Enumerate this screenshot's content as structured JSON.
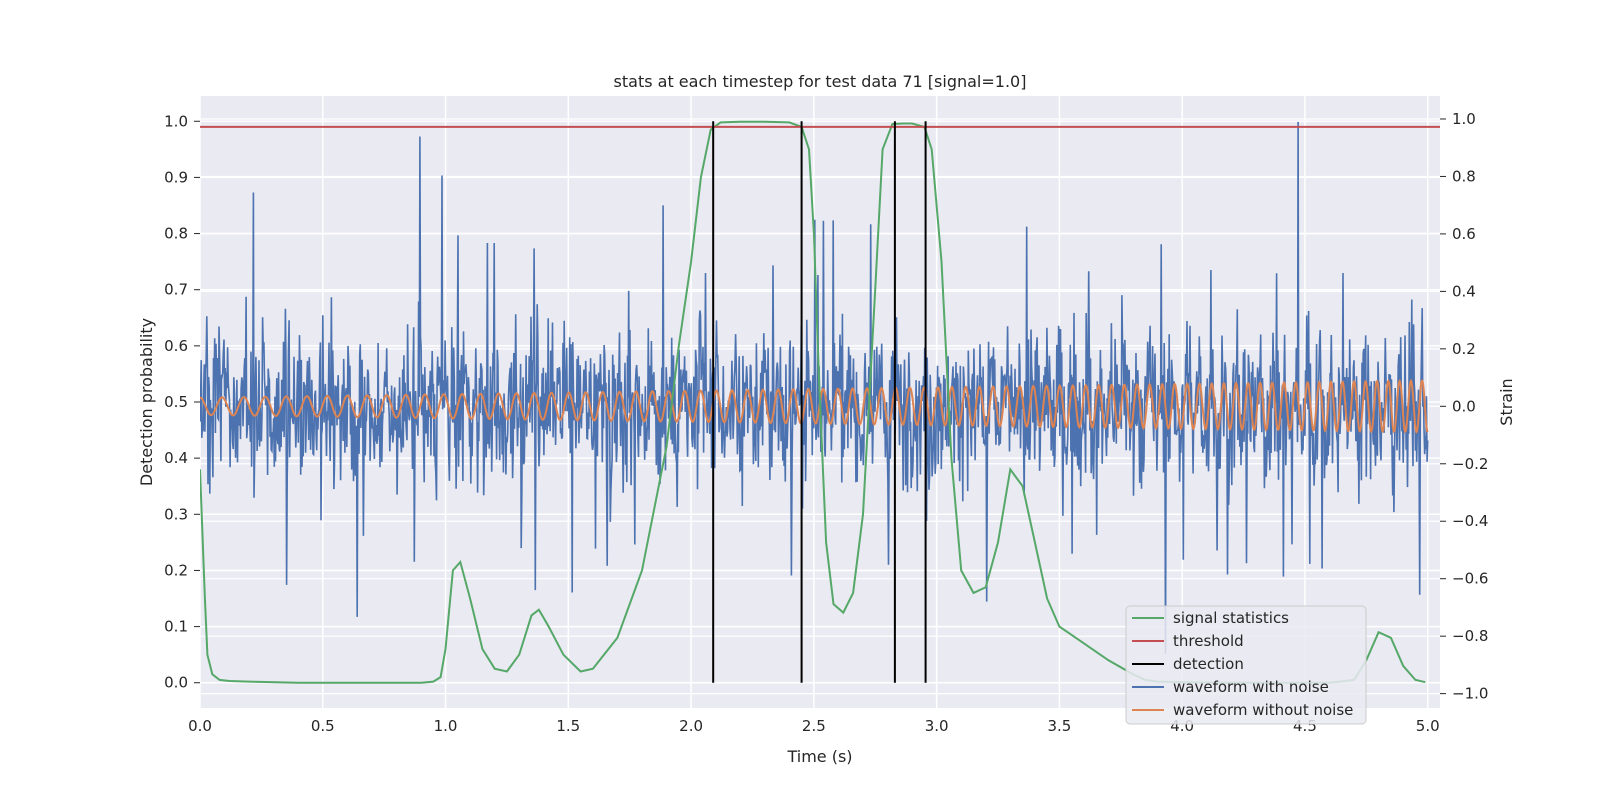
{
  "chart_data": {
    "type": "line",
    "title": "stats at each timestep for test data 71 [signal=1.0]",
    "xlabel": "Time (s)",
    "ylabel_left": "Detection probability",
    "ylabel_right": "Strain",
    "xlim": [
      0.0,
      5.05
    ],
    "ylim_left": [
      -0.045,
      1.045
    ],
    "ylim_right": [
      -1.05,
      1.08
    ],
    "grid": true,
    "legend_position": "lower-right",
    "x_ticks": [
      0.0,
      0.5,
      1.0,
      1.5,
      2.0,
      2.5,
      3.0,
      3.5,
      4.0,
      4.5,
      5.0
    ],
    "x_tick_labels": [
      "0.0",
      "0.5",
      "1.0",
      "1.5",
      "2.0",
      "2.5",
      "3.0",
      "3.5",
      "4.0",
      "4.5",
      "5.0"
    ],
    "y_left_ticks": [
      0.0,
      0.1,
      0.2,
      0.3,
      0.4,
      0.5,
      0.6,
      0.7,
      0.8,
      0.9,
      1.0
    ],
    "y_left_tick_labels": [
      "0.0",
      "0.1",
      "0.2",
      "0.3",
      "0.4",
      "0.5",
      "0.6",
      "0.7",
      "0.8",
      "0.9",
      "1.0"
    ],
    "y_right_ticks": [
      -1.0,
      -0.8,
      -0.6,
      -0.4,
      -0.2,
      0.0,
      0.2,
      0.4,
      0.6,
      0.8,
      1.0
    ],
    "y_right_tick_labels": [
      "−1.0",
      "−0.8",
      "−0.6",
      "−0.4",
      "−0.2",
      "0.0",
      "0.2",
      "0.4",
      "0.6",
      "0.8",
      "1.0"
    ],
    "series": [
      {
        "name": "signal statistics",
        "axis": "left",
        "color": "#55a868",
        "x": [
          0.0,
          0.02,
          0.03,
          0.05,
          0.08,
          0.12,
          0.2,
          0.4,
          0.6,
          0.8,
          0.9,
          0.95,
          0.98,
          1.0,
          1.03,
          1.06,
          1.1,
          1.15,
          1.2,
          1.25,
          1.3,
          1.35,
          1.38,
          1.42,
          1.48,
          1.55,
          1.6,
          1.7,
          1.8,
          1.9,
          1.95,
          2.0,
          2.04,
          2.08,
          2.12,
          2.2,
          2.3,
          2.4,
          2.45,
          2.48,
          2.5,
          2.52,
          2.55,
          2.58,
          2.62,
          2.66,
          2.7,
          2.75,
          2.78,
          2.82,
          2.86,
          2.9,
          2.95,
          2.98,
          3.02,
          3.06,
          3.1,
          3.15,
          3.2,
          3.25,
          3.3,
          3.35,
          3.4,
          3.45,
          3.5,
          3.6,
          3.7,
          3.8,
          3.85,
          3.9,
          4.0,
          4.2,
          4.4,
          4.6,
          4.7,
          4.75,
          4.8,
          4.85,
          4.9,
          4.95,
          4.99
        ],
        "y": [
          0.38,
          0.15,
          0.05,
          0.015,
          0.005,
          0.003,
          0.002,
          0.0,
          0.0,
          0.0,
          0.0,
          0.002,
          0.01,
          0.06,
          0.2,
          0.215,
          0.15,
          0.06,
          0.025,
          0.02,
          0.05,
          0.12,
          0.13,
          0.1,
          0.05,
          0.02,
          0.025,
          0.08,
          0.2,
          0.42,
          0.6,
          0.75,
          0.9,
          0.985,
          0.998,
          0.999,
          0.999,
          0.998,
          0.99,
          0.95,
          0.8,
          0.55,
          0.25,
          0.14,
          0.125,
          0.16,
          0.3,
          0.7,
          0.95,
          0.995,
          0.996,
          0.996,
          0.99,
          0.95,
          0.75,
          0.4,
          0.2,
          0.16,
          0.17,
          0.25,
          0.38,
          0.35,
          0.25,
          0.15,
          0.1,
          0.07,
          0.04,
          0.015,
          0.005,
          0.002,
          0.001,
          0.0,
          0.0,
          0.0,
          0.005,
          0.04,
          0.09,
          0.08,
          0.03,
          0.005,
          0.001
        ]
      },
      {
        "name": "threshold",
        "axis": "left",
        "color": "#c44e52",
        "x": [
          0.0,
          5.05
        ],
        "y": [
          0.99,
          0.99
        ]
      },
      {
        "name": "detection",
        "axis": "left",
        "color": "#000000",
        "x": [
          2.09,
          2.45,
          2.83,
          2.955
        ],
        "y_range": [
          0.0,
          1.0
        ]
      },
      {
        "name": "waveform with noise",
        "axis": "right",
        "color": "#4c72b0",
        "t_range": [
          0.0,
          5.0
        ],
        "n_samples": 2000,
        "std": 0.2,
        "max": 0.99,
        "min": -0.93
      },
      {
        "name": "waveform without noise",
        "axis": "right",
        "color": "#dd8452",
        "t_range": [
          0.0,
          5.0
        ],
        "amplitude_start": 0.03,
        "amplitude_end": 0.09,
        "freq_start_hz": 11.0,
        "freq_end_hz": 22.0
      }
    ]
  }
}
